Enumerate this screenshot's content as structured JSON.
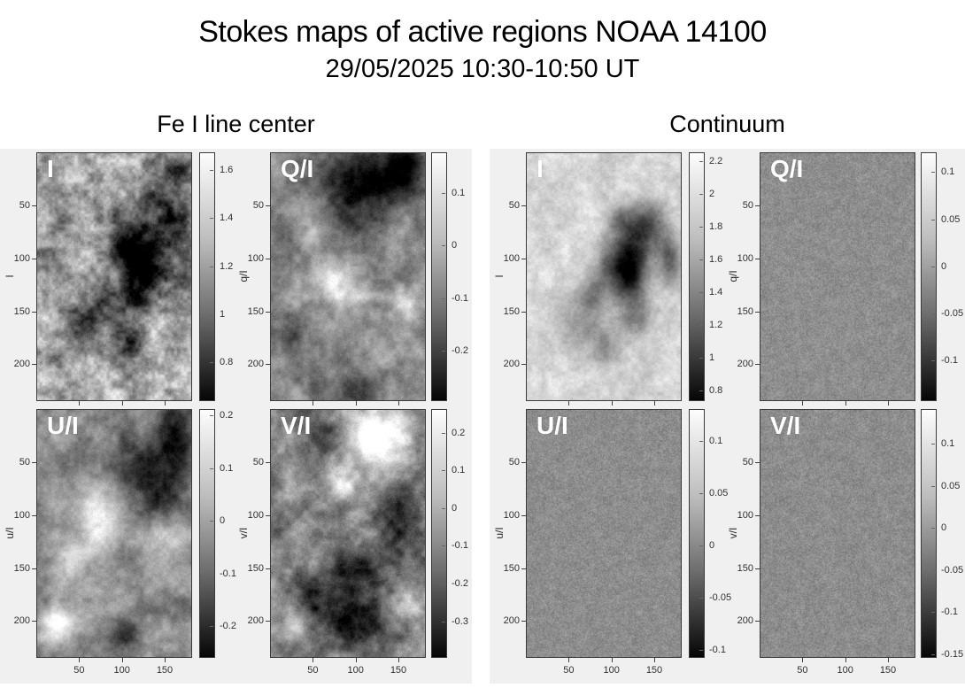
{
  "header": {
    "title": "Stokes maps of active regions NOAA 14100",
    "subtitle": "29/05/2025 10:30-10:50 UT",
    "columns": [
      "Fe I line center",
      "Continuum"
    ]
  },
  "style": {
    "page_background": "#ffffff",
    "figure_background": "#f0f0f0",
    "axis_text_color": "#303030",
    "panel_label_color": "#ffffff",
    "colormap": "gray"
  },
  "chart_data": {
    "type": "heatmap",
    "title": "Stokes maps of active regions NOAA 14100",
    "subtitle": "29/05/2025 10:30-10:50 UT",
    "colormap": "gray (white=max, black=min)",
    "axes": {
      "x_ticks": [
        50,
        100,
        150
      ],
      "y_ticks": [
        50,
        100,
        150,
        200
      ],
      "x_range": [
        0,
        180
      ],
      "y_range": [
        0,
        233
      ],
      "x_tick_labels_shown_on": "bottom row only"
    },
    "groups": [
      {
        "name": "Fe I line center",
        "panels": [
          {
            "label": "I",
            "ylabel": "I",
            "colorbar_ticks": [
              1.6,
              1.4,
              1.2,
              1,
              0.8
            ],
            "colorbar_range": [
              0.65,
              1.67
            ],
            "description": "Granular intensity map, bright field with dark sunspot umbrae right of centre"
          },
          {
            "label": "Q/I",
            "ylabel": "q/I",
            "colorbar_ticks": [
              0.1,
              0,
              -0.1,
              -0.2
            ],
            "colorbar_range": [
              -0.29,
              0.175
            ],
            "description": "Mid-gray map, strong dark patch upper right, bright streaks in centre"
          },
          {
            "label": "U/I",
            "ylabel": "u/I",
            "colorbar_ticks": [
              0.2,
              0.1,
              0,
              -0.1,
              -0.2
            ],
            "colorbar_range": [
              -0.255,
              0.21
            ],
            "description": "Mid-gray map, dark region upper right, bright blobs centre-left and lower-left"
          },
          {
            "label": "V/I",
            "ylabel": "v/I",
            "colorbar_ticks": [
              0.2,
              0.1,
              0,
              -0.1,
              -0.2,
              -0.3
            ],
            "colorbar_range": [
              -0.39,
              0.26
            ],
            "description": "High-contrast map, bright area upper right, dark filamentary region lower centre"
          }
        ]
      },
      {
        "name": "Continuum",
        "panels": [
          {
            "label": "I",
            "ylabel": "I",
            "colorbar_ticks": [
              2.2,
              2,
              1.8,
              1.6,
              1.4,
              1.2,
              1,
              0.8
            ],
            "colorbar_range": [
              0.75,
              2.25
            ],
            "description": "Bright continuum intensity map with dark sunspot group right of centre"
          },
          {
            "label": "Q/I",
            "ylabel": "q/I",
            "colorbar_ticks": [
              0.1,
              0.05,
              0,
              -0.05,
              -0.1
            ],
            "colorbar_range": [
              -0.14,
              0.12
            ],
            "description": "Nearly uniform mid-gray noise map"
          },
          {
            "label": "U/I",
            "ylabel": "u/I",
            "colorbar_ticks": [
              0.1,
              0.05,
              0,
              -0.05,
              -0.1
            ],
            "colorbar_range": [
              -0.105,
              0.13
            ],
            "description": "Nearly uniform mid-gray noise map"
          },
          {
            "label": "V/I",
            "ylabel": "v/I",
            "colorbar_ticks": [
              0.1,
              0.05,
              0,
              -0.05,
              -0.1,
              -0.15
            ],
            "colorbar_range": [
              -0.151,
              0.14
            ],
            "description": "Nearly uniform mid-gray noise map"
          }
        ]
      }
    ]
  }
}
